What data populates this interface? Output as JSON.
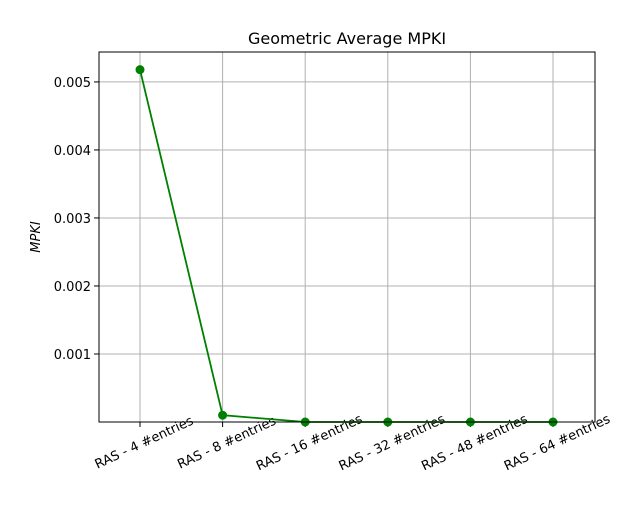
{
  "chart_data": {
    "type": "line",
    "title": "Geometric Average MPKI",
    "xlabel": "",
    "ylabel": "MPKI",
    "categories": [
      "RAS - 4 #entries",
      "RAS - 8 #entries",
      "RAS - 16 #entries",
      "RAS - 32 #entries",
      "RAS - 48 #entries",
      "RAS - 64 #entries"
    ],
    "series": [
      {
        "values": [
          0.00518,
          0.0001,
          0.0,
          0.0,
          0.0,
          0.0
        ]
      }
    ],
    "ylim": [
      0.0,
      0.00544
    ],
    "yticks": [
      0.001,
      0.002,
      0.003,
      0.004,
      0.005
    ],
    "ytick_labels": [
      "0.001",
      "0.002",
      "0.003",
      "0.004",
      "0.005"
    ],
    "grid": true,
    "colors": {
      "line": "#008000",
      "grid": "#b0b0b0",
      "axes": "#000000"
    },
    "marker": "circle"
  }
}
